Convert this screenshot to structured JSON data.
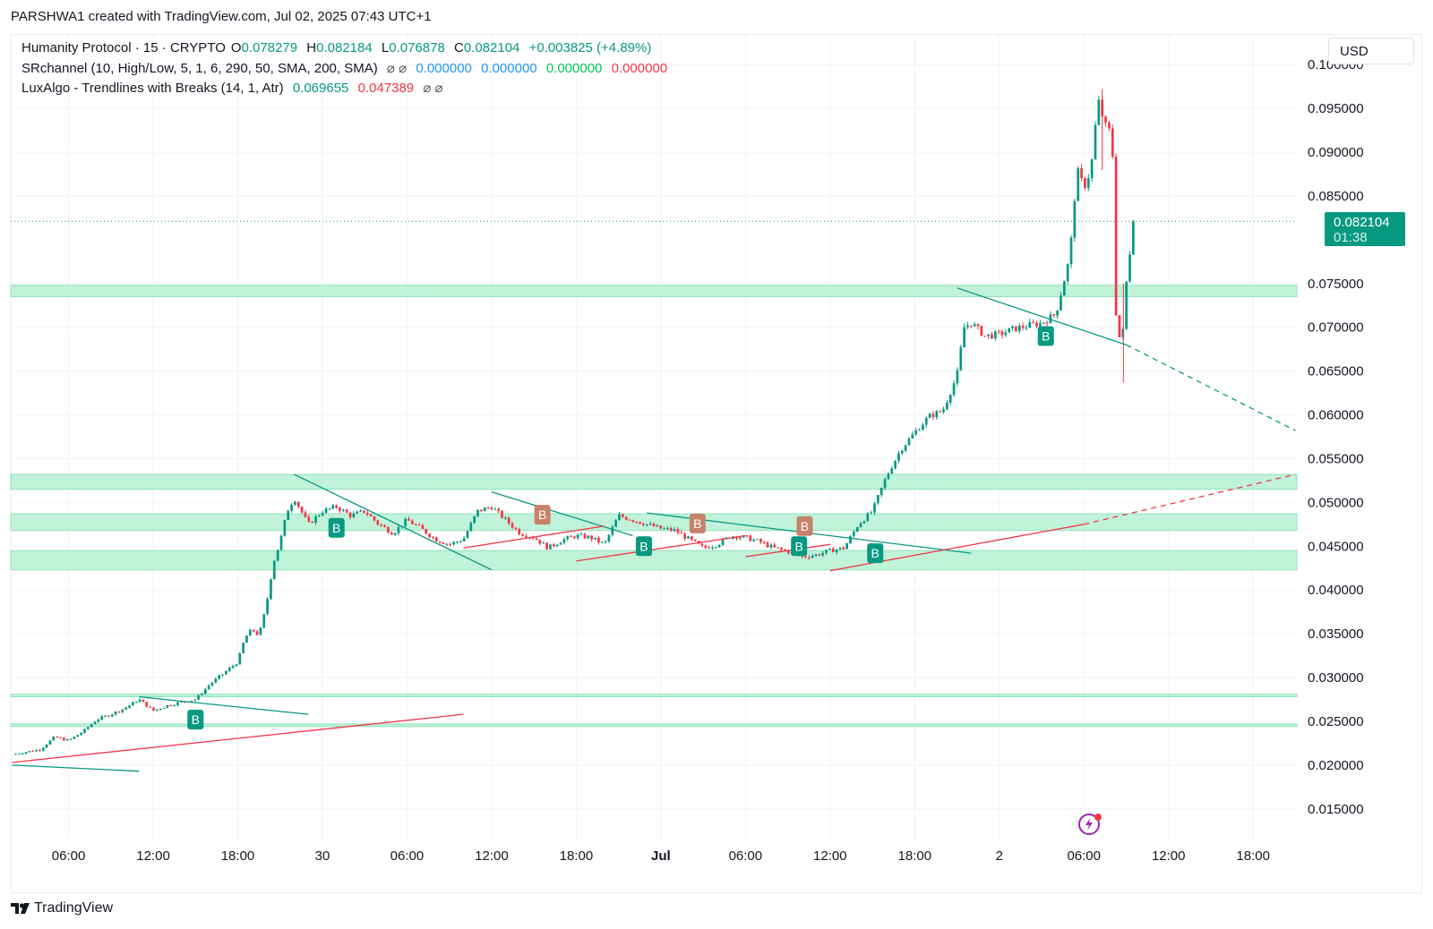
{
  "header": {
    "text": "PARSHWA1 created with TradingView.com, Jul 02, 2025 07:43 UTC+1"
  },
  "legend": {
    "line1": {
      "symbol": "Humanity Protocol · 15 · CRYPTO",
      "o_label": "O",
      "o_value": "0.078279",
      "h_label": "H",
      "h_value": "0.082184",
      "l_label": "L",
      "l_value": "0.076878",
      "c_label": "C",
      "c_value": "0.082104",
      "change": "+0.003825 (+4.89%)"
    },
    "line2": {
      "name": "SRchannel (10, High/Low, 5, 1, 6, 290, 50, SMA, 200, SMA)",
      "eye": "⌀ ⌀",
      "v1": "0.000000",
      "v2": "0.000000",
      "v3": "0.000000",
      "v4": "0.000000"
    },
    "line3": {
      "name": "LuxAlgo - Trendlines with Breaks (14, 1, Atr)",
      "v1": "0.069655",
      "v2": "0.047389",
      "eye": "⌀ ⌀"
    }
  },
  "currency": "USD",
  "last_price": {
    "price": "0.082104",
    "countdown": "01:38"
  },
  "brand": {
    "name": "TradingView",
    "icon": "tradingview-logo-icon"
  },
  "colors": {
    "up": "#089981",
    "down": "#f23645",
    "zone": "#b9f2d6",
    "support": "#f23645",
    "resistance": "#089981",
    "label_orange": "#c8826a"
  },
  "chart_data": {
    "type": "candlestick",
    "symbol": "Humanity Protocol",
    "interval": "15",
    "y_ticks": [
      "0.100000",
      "0.095000",
      "0.090000",
      "0.085000",
      "0.075000",
      "0.070000",
      "0.065000",
      "0.060000",
      "0.055000",
      "0.050000",
      "0.045000",
      "0.040000",
      "0.035000",
      "0.030000",
      "0.025000",
      "0.020000",
      "0.015000"
    ],
    "ylim": [
      0.0115,
      0.1035
    ],
    "x_ticks": [
      "06:00",
      "12:00",
      "18:00",
      "30",
      "06:00",
      "12:00",
      "18:00",
      "Jul",
      "06:00",
      "12:00",
      "18:00",
      "2",
      "06:00",
      "12:00",
      "18:00"
    ],
    "x_tick_hours": [
      6,
      12,
      18,
      24,
      30,
      36,
      42,
      48,
      54,
      60,
      66,
      72,
      78,
      84,
      90
    ],
    "x_range_hours": [
      1.9,
      93.1
    ],
    "price_path": [
      [
        2,
        0.0212
      ],
      [
        3,
        0.0215
      ],
      [
        4,
        0.0218
      ],
      [
        5,
        0.0232
      ],
      [
        6,
        0.0228
      ],
      [
        7,
        0.0238
      ],
      [
        8,
        0.0252
      ],
      [
        9,
        0.0258
      ],
      [
        10,
        0.0265
      ],
      [
        11,
        0.0275
      ],
      [
        12,
        0.0262
      ],
      [
        13,
        0.0268
      ],
      [
        14,
        0.0272
      ],
      [
        15,
        0.0275
      ],
      [
        16,
        0.0292
      ],
      [
        17,
        0.0305
      ],
      [
        18,
        0.0318
      ],
      [
        18.5,
        0.0345
      ],
      [
        19,
        0.0355
      ],
      [
        19.5,
        0.0348
      ],
      [
        20,
        0.038
      ],
      [
        20.5,
        0.043
      ],
      [
        21,
        0.0455
      ],
      [
        21.5,
        0.049
      ],
      [
        22,
        0.0505
      ],
      [
        23,
        0.0475
      ],
      [
        24,
        0.049
      ],
      [
        25,
        0.0495
      ],
      [
        26,
        0.0485
      ],
      [
        27,
        0.049
      ],
      [
        28,
        0.0475
      ],
      [
        29,
        0.0465
      ],
      [
        30,
        0.048
      ],
      [
        31,
        0.047
      ],
      [
        32,
        0.0458
      ],
      [
        33,
        0.0452
      ],
      [
        34,
        0.0458
      ],
      [
        35,
        0.049
      ],
      [
        36,
        0.0495
      ],
      [
        37,
        0.048
      ],
      [
        38,
        0.0465
      ],
      [
        39,
        0.046
      ],
      [
        40,
        0.0448
      ],
      [
        41,
        0.0457
      ],
      [
        42,
        0.0462
      ],
      [
        43,
        0.046
      ],
      [
        44,
        0.0452
      ],
      [
        45,
        0.0485
      ],
      [
        46,
        0.048
      ],
      [
        47,
        0.0475
      ],
      [
        48,
        0.047
      ],
      [
        49,
        0.0468
      ],
      [
        50,
        0.0458
      ],
      [
        51,
        0.0448
      ],
      [
        52,
        0.0452
      ],
      [
        53,
        0.0462
      ],
      [
        54,
        0.046
      ],
      [
        55,
        0.0455
      ],
      [
        56,
        0.0448
      ],
      [
        57,
        0.0444
      ],
      [
        58,
        0.0438
      ],
      [
        59,
        0.044
      ],
      [
        60,
        0.0445
      ],
      [
        61,
        0.0448
      ],
      [
        62,
        0.0475
      ],
      [
        63,
        0.049
      ],
      [
        64,
        0.053
      ],
      [
        65,
        0.056
      ],
      [
        66,
        0.058
      ],
      [
        67,
        0.0598
      ],
      [
        68,
        0.0605
      ],
      [
        69,
        0.0645
      ],
      [
        69.5,
        0.07
      ],
      [
        70,
        0.0705
      ],
      [
        71,
        0.069
      ],
      [
        72,
        0.0692
      ],
      [
        73,
        0.0698
      ],
      [
        74,
        0.0702
      ],
      [
        75,
        0.0705
      ],
      [
        76,
        0.0715
      ],
      [
        77,
        0.078
      ],
      [
        77.5,
        0.088
      ],
      [
        78,
        0.086
      ],
      [
        78.5,
        0.088
      ],
      [
        79,
        0.096
      ],
      [
        79.5,
        0.093
      ],
      [
        80,
        0.092
      ],
      [
        80.3,
        0.07
      ],
      [
        80.7,
        0.068
      ],
      [
        81,
        0.075
      ],
      [
        81.5,
        0.0821
      ]
    ],
    "candle_count": 325,
    "sr_zones": [
      [
        0.0735,
        0.0748
      ],
      [
        0.0515,
        0.0532
      ],
      [
        0.0468,
        0.0487
      ],
      [
        0.0423,
        0.0445
      ],
      [
        0.0278,
        0.0281
      ],
      [
        0.0244,
        0.0247
      ]
    ],
    "trendlines": [
      {
        "kind": "resistance",
        "points": [
          [
            2,
            0.02
          ],
          [
            11,
            0.0193
          ]
        ]
      },
      {
        "kind": "support",
        "points": [
          [
            2,
            0.0203
          ],
          [
            34,
            0.0258
          ]
        ]
      },
      {
        "kind": "resistance",
        "points": [
          [
            11,
            0.0278
          ],
          [
            23,
            0.0258
          ]
        ]
      },
      {
        "kind": "resistance",
        "points": [
          [
            22,
            0.0532
          ],
          [
            36,
            0.0423
          ]
        ]
      },
      {
        "kind": "resistance",
        "points": [
          [
            36,
            0.0512
          ],
          [
            46,
            0.0462
          ]
        ]
      },
      {
        "kind": "support",
        "points": [
          [
            34,
            0.0448
          ],
          [
            44,
            0.0473
          ]
        ]
      },
      {
        "kind": "support",
        "points": [
          [
            42,
            0.0433
          ],
          [
            54,
            0.0462
          ]
        ]
      },
      {
        "kind": "resistance",
        "points": [
          [
            47,
            0.0488
          ],
          [
            70,
            0.0442
          ]
        ]
      },
      {
        "kind": "support",
        "points": [
          [
            54,
            0.0438
          ],
          [
            60,
            0.0452
          ]
        ]
      },
      {
        "kind": "support",
        "points": [
          [
            60,
            0.0422
          ],
          [
            78,
            0.0475
          ]
        ]
      },
      {
        "kind": "resistance",
        "points": [
          [
            69,
            0.0745
          ],
          [
            81,
            0.068
          ]
        ]
      },
      {
        "kind": "resistance-ext",
        "points": [
          [
            81,
            0.068
          ],
          [
            93,
            0.0582
          ]
        ]
      },
      {
        "kind": "support-ext",
        "points": [
          [
            78,
            0.0475
          ],
          [
            93,
            0.0532
          ]
        ]
      }
    ],
    "break_labels": [
      {
        "t": 15,
        "p": 0.0253,
        "kind": "up"
      },
      {
        "t": 25,
        "p": 0.0472,
        "kind": "up"
      },
      {
        "t": 39.6,
        "p": 0.0487,
        "kind": "down"
      },
      {
        "t": 46.8,
        "p": 0.0451,
        "kind": "up"
      },
      {
        "t": 50.6,
        "p": 0.0477,
        "kind": "down"
      },
      {
        "t": 58.2,
        "p": 0.0474,
        "kind": "down"
      },
      {
        "t": 57.8,
        "p": 0.0451,
        "kind": "up"
      },
      {
        "t": 63.2,
        "p": 0.0443,
        "kind": "up"
      },
      {
        "t": 75.3,
        "p": 0.0691,
        "kind": "up"
      }
    ],
    "break_label_text": "B",
    "last_price": 0.082104
  }
}
